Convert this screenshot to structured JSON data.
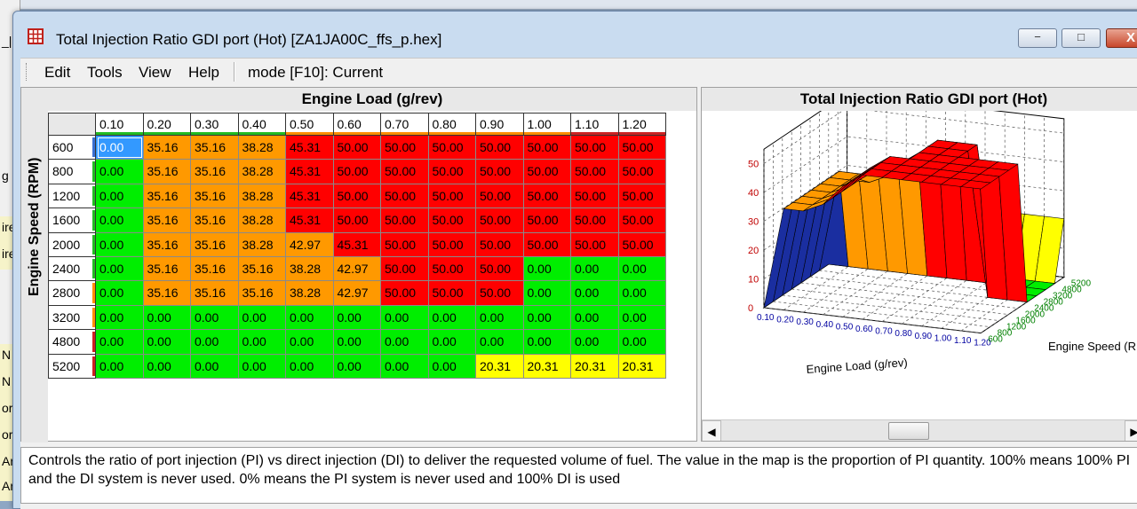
{
  "window": {
    "title": "Total Injection Ratio GDI port (Hot) [ZA1JA00C_ffs_p.hex]",
    "min_label": "−",
    "max_label": "□",
    "close_label": "X"
  },
  "menu": {
    "items": [
      "Edit",
      "Tools",
      "View",
      "Help"
    ],
    "mode_label": "mode [F10]: Current"
  },
  "table": {
    "x_axis_title": "Engine Load (g/rev)",
    "y_axis_title": "Engine Speed (RPM)",
    "columns": [
      "0.10",
      "0.20",
      "0.30",
      "0.40",
      "0.50",
      "0.60",
      "0.70",
      "0.80",
      "0.90",
      "1.00",
      "1.10",
      "1.20"
    ],
    "column_bar_colors": [
      "#22bb22",
      "#22bb22",
      "#22bb22",
      "#22bb22",
      "#ff8c00",
      "#ff8c00",
      "#ff8c00",
      "#ff8c00",
      "#ff8c00",
      "#ff8c00",
      "#cc2222",
      "#cc2222"
    ],
    "rows": [
      "600",
      "800",
      "1200",
      "1600",
      "2000",
      "2400",
      "2800",
      "3200",
      "4800",
      "5200"
    ],
    "row_bar_colors": [
      "#3a6fd0",
      "#22bb22",
      "#22bb22",
      "#22bb22",
      "#22bb22",
      "#22bb22",
      "#ff8c00",
      "#ff8c00",
      "#cc2222",
      "#cc2222"
    ],
    "values": [
      [
        "0.00",
        "35.16",
        "35.16",
        "38.28",
        "45.31",
        "50.00",
        "50.00",
        "50.00",
        "50.00",
        "50.00",
        "50.00",
        "50.00"
      ],
      [
        "0.00",
        "35.16",
        "35.16",
        "38.28",
        "45.31",
        "50.00",
        "50.00",
        "50.00",
        "50.00",
        "50.00",
        "50.00",
        "50.00"
      ],
      [
        "0.00",
        "35.16",
        "35.16",
        "38.28",
        "45.31",
        "50.00",
        "50.00",
        "50.00",
        "50.00",
        "50.00",
        "50.00",
        "50.00"
      ],
      [
        "0.00",
        "35.16",
        "35.16",
        "38.28",
        "45.31",
        "50.00",
        "50.00",
        "50.00",
        "50.00",
        "50.00",
        "50.00",
        "50.00"
      ],
      [
        "0.00",
        "35.16",
        "35.16",
        "38.28",
        "42.97",
        "45.31",
        "50.00",
        "50.00",
        "50.00",
        "50.00",
        "50.00",
        "50.00"
      ],
      [
        "0.00",
        "35.16",
        "35.16",
        "35.16",
        "38.28",
        "42.97",
        "50.00",
        "50.00",
        "50.00",
        "0.00",
        "0.00",
        "0.00"
      ],
      [
        "0.00",
        "35.16",
        "35.16",
        "35.16",
        "38.28",
        "42.97",
        "50.00",
        "50.00",
        "50.00",
        "0.00",
        "0.00",
        "0.00"
      ],
      [
        "0.00",
        "0.00",
        "0.00",
        "0.00",
        "0.00",
        "0.00",
        "0.00",
        "0.00",
        "0.00",
        "0.00",
        "0.00",
        "0.00"
      ],
      [
        "0.00",
        "0.00",
        "0.00",
        "0.00",
        "0.00",
        "0.00",
        "0.00",
        "0.00",
        "0.00",
        "0.00",
        "0.00",
        "0.00"
      ],
      [
        "0.00",
        "0.00",
        "0.00",
        "0.00",
        "0.00",
        "0.00",
        "0.00",
        "0.00",
        "20.31",
        "20.31",
        "20.31",
        "20.31"
      ]
    ],
    "selected_cell": "0.00"
  },
  "chart": {
    "title": "Total Injection Ratio GDI port (Hot)",
    "x_label": "Engine Load (g/rev)",
    "y_label": "Engine Speed (RPM)",
    "z_ticks": [
      "0",
      "10",
      "20",
      "30",
      "40",
      "50"
    ],
    "x_ticks": [
      "0.10",
      "0.20",
      "0.30",
      "0.40",
      "0.50",
      "0.60",
      "0.70",
      "0.80",
      "0.90",
      "1.00",
      "1.10",
      "1.20"
    ],
    "y_ticks": [
      "600",
      "800",
      "1200",
      "1600",
      "2000",
      "2400",
      "2800",
      "3200",
      "4800",
      "5200"
    ]
  },
  "description": "Controls the ratio of port injection (PI) vs direct injection (DI) to deliver the requested volume of fuel. The value in the map is the proportion of PI quantity. 100% means 100% PI and the DI system is never used. 0% means the PI system is never used and 100% DI is used",
  "background": {
    "fragments": [
      "_|",
      "g",
      "ire",
      "ire",
      "N",
      "N",
      "or",
      "or",
      "Ar",
      "Ar"
    ]
  },
  "colors": {
    "green": "#00ee00",
    "orange": "#ff9900",
    "red": "#ff0000",
    "yellow": "#ffff00",
    "selected": "#3399ff"
  }
}
